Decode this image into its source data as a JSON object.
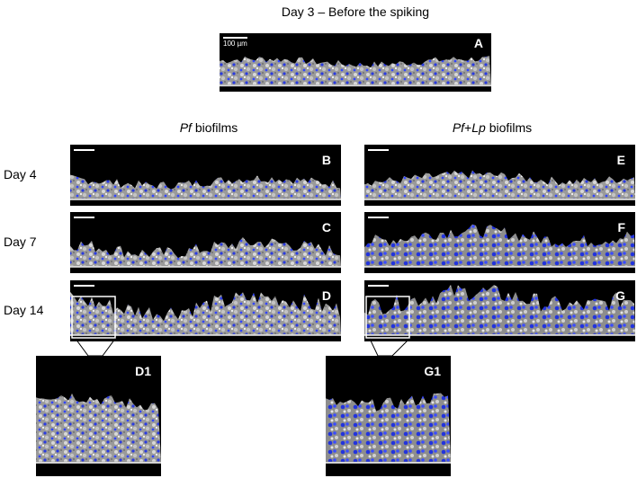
{
  "title": "Day 3 – Before the spiking",
  "scale_bar_label": "100 µm",
  "top_panel": "A",
  "column_headers": [
    {
      "parts": [
        {
          "text": "Pf",
          "italic": true
        },
        {
          "text": " biofilms",
          "italic": false
        }
      ]
    },
    {
      "parts": [
        {
          "text": "Pf",
          "italic": true
        },
        {
          "text": "+",
          "italic": false
        },
        {
          "text": "Lp",
          "italic": true
        },
        {
          "text": " biofilms",
          "italic": false
        }
      ]
    }
  ],
  "row_labels": [
    "Day 4",
    "Day 7",
    "Day 14"
  ],
  "panels": [
    [
      "B",
      "E"
    ],
    [
      "C",
      "F"
    ],
    [
      "D",
      "G"
    ]
  ],
  "insets": [
    "D1",
    "G1"
  ]
}
